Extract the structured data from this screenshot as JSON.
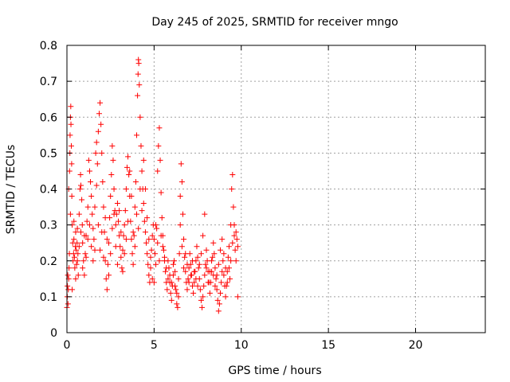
{
  "chart_data": {
    "type": "scatter",
    "title": "Day 245 of 2025, SRMTID for receiver mngo",
    "xlabel": "GPS time / hours",
    "ylabel": "SRMTID / TECUs",
    "xlim": [
      0,
      24
    ],
    "ylim": [
      0,
      0.8
    ],
    "xticks": [
      0,
      5,
      10,
      15,
      20
    ],
    "yticks": [
      0,
      0.1,
      0.2,
      0.3,
      0.4,
      0.5,
      0.6,
      0.7,
      0.8
    ],
    "xtick_labels": [
      "0",
      "5",
      "10",
      "15",
      "20"
    ],
    "ytick_labels": [
      "0",
      "0.1",
      "0.2",
      "0.3",
      "0.4",
      "0.5",
      "0.6",
      "0.7",
      "0.8"
    ],
    "grid": true,
    "marker": "+",
    "series": [
      {
        "name": "SRMTID",
        "color": "#ff0000",
        "points": [
          [
            0.0,
            0.07
          ],
          [
            0.02,
            0.1
          ],
          [
            0.03,
            0.13
          ],
          [
            0.05,
            0.16
          ],
          [
            0.06,
            0.08
          ],
          [
            0.08,
            0.12
          ],
          [
            0.1,
            0.15
          ],
          [
            0.12,
            0.18
          ],
          [
            0.14,
            0.22
          ],
          [
            0.15,
            0.45
          ],
          [
            0.17,
            0.5
          ],
          [
            0.18,
            0.55
          ],
          [
            0.2,
            0.6
          ],
          [
            0.22,
            0.63
          ],
          [
            0.23,
            0.58
          ],
          [
            0.25,
            0.52
          ],
          [
            0.27,
            0.47
          ],
          [
            0.28,
            0.38
          ],
          [
            0.3,
            0.3
          ],
          [
            0.33,
            0.25
          ],
          [
            0.35,
            0.2
          ],
          [
            0.38,
            0.22
          ],
          [
            0.4,
            0.26
          ],
          [
            0.43,
            0.21
          ],
          [
            0.45,
            0.18
          ],
          [
            0.48,
            0.24
          ],
          [
            0.5,
            0.28
          ],
          [
            0.53,
            0.23
          ],
          [
            0.55,
            0.19
          ],
          [
            0.58,
            0.25
          ],
          [
            0.6,
            0.29
          ],
          [
            0.63,
            0.22
          ],
          [
            0.65,
            0.16
          ],
          [
            0.7,
            0.33
          ],
          [
            0.75,
            0.4
          ],
          [
            0.78,
            0.44
          ],
          [
            0.8,
            0.41
          ],
          [
            0.85,
            0.37
          ],
          [
            0.88,
            0.3
          ],
          [
            0.9,
            0.25
          ],
          [
            0.95,
            0.2
          ],
          [
            1.0,
            0.16
          ],
          [
            1.05,
            0.22
          ],
          [
            1.1,
            0.27
          ],
          [
            1.15,
            0.31
          ],
          [
            1.2,
            0.35
          ],
          [
            1.25,
            0.48
          ],
          [
            1.3,
            0.45
          ],
          [
            1.35,
            0.42
          ],
          [
            1.4,
            0.38
          ],
          [
            1.45,
            0.33
          ],
          [
            1.5,
            0.29
          ],
          [
            1.55,
            0.26
          ],
          [
            1.6,
            0.23
          ],
          [
            1.65,
            0.5
          ],
          [
            1.7,
            0.53
          ],
          [
            1.75,
            0.47
          ],
          [
            1.8,
            0.56
          ],
          [
            1.85,
            0.61
          ],
          [
            1.9,
            0.64
          ],
          [
            1.95,
            0.58
          ],
          [
            2.0,
            0.5
          ],
          [
            2.05,
            0.42
          ],
          [
            2.1,
            0.35
          ],
          [
            2.15,
            0.28
          ],
          [
            2.2,
            0.2
          ],
          [
            2.25,
            0.15
          ],
          [
            2.3,
            0.12
          ],
          [
            2.35,
            0.19
          ],
          [
            2.4,
            0.25
          ],
          [
            2.45,
            0.32
          ],
          [
            2.5,
            0.38
          ],
          [
            2.55,
            0.44
          ],
          [
            2.6,
            0.52
          ],
          [
            2.65,
            0.48
          ],
          [
            2.7,
            0.4
          ],
          [
            2.75,
            0.34
          ],
          [
            2.8,
            0.3
          ],
          [
            2.85,
            0.33
          ],
          [
            2.9,
            0.36
          ],
          [
            2.95,
            0.31
          ],
          [
            3.0,
            0.27
          ],
          [
            3.05,
            0.24
          ],
          [
            3.1,
            0.21
          ],
          [
            3.15,
            0.18
          ],
          [
            3.2,
            0.23
          ],
          [
            3.25,
            0.27
          ],
          [
            3.3,
            0.3
          ],
          [
            3.35,
            0.34
          ],
          [
            3.4,
            0.4
          ],
          [
            3.45,
            0.46
          ],
          [
            3.5,
            0.49
          ],
          [
            3.55,
            0.44
          ],
          [
            3.6,
            0.38
          ],
          [
            3.65,
            0.31
          ],
          [
            3.7,
            0.26
          ],
          [
            3.75,
            0.22
          ],
          [
            3.8,
            0.19
          ],
          [
            3.85,
            0.27
          ],
          [
            3.9,
            0.35
          ],
          [
            3.95,
            0.42
          ],
          [
            4.0,
            0.55
          ],
          [
            4.05,
            0.66
          ],
          [
            4.08,
            0.72
          ],
          [
            4.1,
            0.76
          ],
          [
            4.12,
            0.75
          ],
          [
            4.15,
            0.69
          ],
          [
            4.2,
            0.6
          ],
          [
            4.25,
            0.52
          ],
          [
            4.3,
            0.45
          ],
          [
            4.35,
            0.4
          ],
          [
            4.4,
            0.36
          ],
          [
            4.45,
            0.31
          ],
          [
            4.5,
            0.28
          ],
          [
            4.55,
            0.25
          ],
          [
            4.6,
            0.22
          ],
          [
            4.65,
            0.19
          ],
          [
            4.7,
            0.16
          ],
          [
            4.75,
            0.14
          ],
          [
            4.8,
            0.18
          ],
          [
            4.85,
            0.23
          ],
          [
            4.9,
            0.27
          ],
          [
            4.95,
            0.3
          ],
          [
            5.0,
            0.26
          ],
          [
            5.05,
            0.22
          ],
          [
            5.1,
            0.19
          ],
          [
            5.15,
            0.29
          ],
          [
            5.2,
            0.45
          ],
          [
            5.25,
            0.52
          ],
          [
            5.3,
            0.57
          ],
          [
            5.35,
            0.48
          ],
          [
            5.4,
            0.39
          ],
          [
            5.45,
            0.32
          ],
          [
            5.5,
            0.27
          ],
          [
            5.55,
            0.23
          ],
          [
            5.6,
            0.2
          ],
          [
            5.65,
            0.17
          ],
          [
            5.7,
            0.14
          ],
          [
            5.75,
            0.12
          ],
          [
            5.8,
            0.15
          ],
          [
            5.85,
            0.18
          ],
          [
            5.9,
            0.14
          ],
          [
            5.95,
            0.11
          ],
          [
            6.0,
            0.09
          ],
          [
            6.05,
            0.13
          ],
          [
            6.1,
            0.16
          ],
          [
            6.15,
            0.2
          ],
          [
            6.2,
            0.17
          ],
          [
            6.25,
            0.12
          ],
          [
            6.3,
            0.08
          ],
          [
            6.35,
            0.07
          ],
          [
            6.4,
            0.1
          ],
          [
            6.45,
            0.22
          ],
          [
            6.5,
            0.38
          ],
          [
            6.55,
            0.47
          ],
          [
            6.6,
            0.42
          ],
          [
            6.65,
            0.33
          ],
          [
            6.7,
            0.26
          ],
          [
            6.75,
            0.21
          ],
          [
            6.8,
            0.17
          ],
          [
            6.85,
            0.14
          ],
          [
            6.9,
            0.12
          ],
          [
            6.95,
            0.15
          ],
          [
            7.0,
            0.18
          ],
          [
            7.05,
            0.22
          ],
          [
            7.1,
            0.19
          ],
          [
            7.15,
            0.16
          ],
          [
            7.2,
            0.13
          ],
          [
            7.25,
            0.11
          ],
          [
            7.3,
            0.14
          ],
          [
            7.35,
            0.17
          ],
          [
            7.4,
            0.2
          ],
          [
            7.45,
            0.24
          ],
          [
            7.5,
            0.21
          ],
          [
            7.55,
            0.18
          ],
          [
            7.6,
            0.15
          ],
          [
            7.65,
            0.12
          ],
          [
            7.7,
            0.09
          ],
          [
            7.75,
            0.07
          ],
          [
            7.8,
            0.1
          ],
          [
            7.85,
            0.13
          ],
          [
            7.9,
            0.16
          ],
          [
            7.95,
            0.19
          ],
          [
            8.0,
            0.23
          ],
          [
            8.05,
            0.2
          ],
          [
            8.1,
            0.17
          ],
          [
            8.15,
            0.14
          ],
          [
            8.2,
            0.11
          ],
          [
            8.25,
            0.14
          ],
          [
            8.3,
            0.17
          ],
          [
            8.35,
            0.21
          ],
          [
            8.4,
            0.25
          ],
          [
            8.45,
            0.22
          ],
          [
            8.5,
            0.18
          ],
          [
            8.55,
            0.15
          ],
          [
            8.6,
            0.12
          ],
          [
            8.65,
            0.09
          ],
          [
            8.7,
            0.06
          ],
          [
            8.75,
            0.08
          ],
          [
            8.8,
            0.11
          ],
          [
            8.85,
            0.14
          ],
          [
            8.9,
            0.17
          ],
          [
            8.95,
            0.2
          ],
          [
            9.0,
            0.16
          ],
          [
            9.05,
            0.13
          ],
          [
            9.1,
            0.1
          ],
          [
            9.15,
            0.13
          ],
          [
            9.2,
            0.17
          ],
          [
            9.25,
            0.21
          ],
          [
            9.3,
            0.18
          ],
          [
            9.35,
            0.15
          ],
          [
            9.4,
            0.3
          ],
          [
            9.45,
            0.4
          ],
          [
            9.5,
            0.44
          ],
          [
            9.55,
            0.35
          ],
          [
            9.6,
            0.27
          ],
          [
            9.65,
            0.23
          ],
          [
            9.7,
            0.2
          ],
          [
            9.75,
            0.26
          ],
          [
            9.8,
            0.1
          ],
          [
            0.1,
            0.4
          ],
          [
            0.2,
            0.33
          ],
          [
            0.3,
            0.12
          ],
          [
            0.4,
            0.31
          ],
          [
            0.5,
            0.15
          ],
          [
            0.6,
            0.2
          ],
          [
            0.7,
            0.24
          ],
          [
            0.8,
            0.28
          ],
          [
            0.9,
            0.18
          ],
          [
            1.0,
            0.27
          ],
          [
            1.1,
            0.21
          ],
          [
            1.2,
            0.26
          ],
          [
            1.3,
            0.3
          ],
          [
            1.4,
            0.24
          ],
          [
            1.5,
            0.2
          ],
          [
            1.6,
            0.35
          ],
          [
            1.7,
            0.41
          ],
          [
            1.8,
            0.3
          ],
          [
            1.9,
            0.23
          ],
          [
            2.0,
            0.28
          ],
          [
            2.1,
            0.21
          ],
          [
            2.2,
            0.32
          ],
          [
            2.3,
            0.26
          ],
          [
            2.4,
            0.16
          ],
          [
            2.5,
            0.22
          ],
          [
            2.6,
            0.29
          ],
          [
            2.7,
            0.33
          ],
          [
            2.8,
            0.24
          ],
          [
            2.9,
            0.19
          ],
          [
            3.0,
            0.34
          ],
          [
            3.1,
            0.28
          ],
          [
            3.2,
            0.17
          ],
          [
            3.3,
            0.22
          ],
          [
            3.4,
            0.26
          ],
          [
            3.5,
            0.31
          ],
          [
            3.6,
            0.45
          ],
          [
            3.7,
            0.38
          ],
          [
            3.8,
            0.28
          ],
          [
            3.9,
            0.24
          ],
          [
            4.0,
            0.33
          ],
          [
            4.1,
            0.29
          ],
          [
            4.2,
            0.4
          ],
          [
            4.3,
            0.34
          ],
          [
            4.4,
            0.48
          ],
          [
            4.5,
            0.4
          ],
          [
            4.6,
            0.32
          ],
          [
            4.7,
            0.26
          ],
          [
            4.8,
            0.21
          ],
          [
            4.9,
            0.15
          ],
          [
            5.0,
            0.14
          ],
          [
            5.1,
            0.3
          ],
          [
            5.2,
            0.25
          ],
          [
            5.3,
            0.2
          ],
          [
            5.4,
            0.27
          ],
          [
            5.5,
            0.24
          ],
          [
            5.6,
            0.21
          ],
          [
            5.7,
            0.18
          ],
          [
            5.8,
            0.2
          ],
          [
            5.9,
            0.16
          ],
          [
            6.0,
            0.14
          ],
          [
            6.1,
            0.19
          ],
          [
            6.2,
            0.13
          ],
          [
            6.3,
            0.11
          ],
          [
            6.4,
            0.15
          ],
          [
            6.5,
            0.3
          ],
          [
            6.6,
            0.24
          ],
          [
            6.7,
            0.18
          ],
          [
            6.8,
            0.22
          ],
          [
            6.9,
            0.19
          ],
          [
            7.0,
            0.14
          ],
          [
            7.1,
            0.16
          ],
          [
            7.2,
            0.2
          ],
          [
            7.3,
            0.17
          ],
          [
            7.4,
            0.15
          ],
          [
            7.5,
            0.13
          ],
          [
            7.6,
            0.19
          ],
          [
            7.7,
            0.22
          ],
          [
            7.8,
            0.27
          ],
          [
            7.9,
            0.33
          ],
          [
            8.0,
            0.18
          ],
          [
            8.1,
            0.14
          ],
          [
            8.2,
            0.17
          ],
          [
            8.3,
            0.2
          ],
          [
            8.4,
            0.16
          ],
          [
            8.5,
            0.13
          ],
          [
            8.6,
            0.16
          ],
          [
            8.7,
            0.19
          ],
          [
            8.8,
            0.23
          ],
          [
            8.9,
            0.26
          ],
          [
            9.0,
            0.22
          ],
          [
            9.1,
            0.18
          ],
          [
            9.2,
            0.14
          ],
          [
            9.3,
            0.24
          ],
          [
            9.4,
            0.2
          ],
          [
            9.5,
            0.25
          ],
          [
            9.6,
            0.3
          ],
          [
            9.7,
            0.28
          ],
          [
            9.8,
            0.24
          ]
        ]
      }
    ]
  }
}
